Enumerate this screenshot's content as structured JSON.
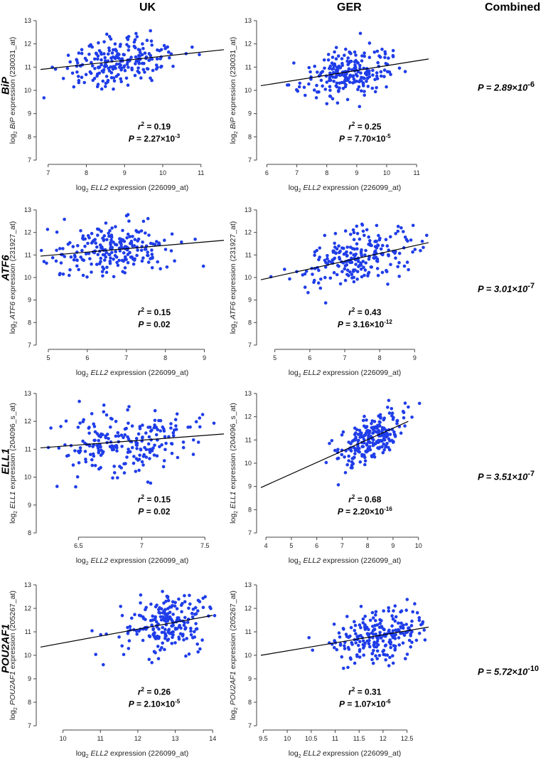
{
  "column_headers": [
    "UK",
    "GER",
    "Combined"
  ],
  "rows": [
    {
      "gene": "BiP",
      "combined_p": "P = 2.89×10",
      "combined_exp": "-6"
    },
    {
      "gene": "ATF6",
      "combined_p": "P = 3.01×10",
      "combined_exp": "-7"
    },
    {
      "gene": "ELL1",
      "combined_p": "P = 3.51×10",
      "combined_exp": "-7"
    },
    {
      "gene": "POU2AF1",
      "combined_p": "P = 5.72×10",
      "combined_exp": "-10"
    }
  ],
  "chart_data": [
    {
      "type": "scatter",
      "row": 0,
      "col": 0,
      "cohort": "UK",
      "gene": "BiP",
      "ylabel_gene": "BiP",
      "ylabel_probe": "(230031_at)",
      "xlabel_gene": "ELL2",
      "xlabel_probe": "(226099_at)",
      "xlim": [
        6.8,
        11.6
      ],
      "ylim": [
        7,
        13
      ],
      "xticks": [
        7,
        8,
        9,
        10,
        11
      ],
      "yticks": [
        7,
        8,
        9,
        10,
        11,
        12,
        13
      ],
      "fit": {
        "x": [
          6.8,
          11.6
        ],
        "y": [
          10.9,
          11.75
        ]
      },
      "r2": "0.19",
      "p": "2.27×10",
      "p_exp": "-3",
      "n": 230,
      "center": [
        8.9,
        11.3
      ],
      "spread": [
        0.8,
        0.6
      ],
      "seed": 11
    },
    {
      "type": "scatter",
      "row": 0,
      "col": 1,
      "cohort": "GER",
      "gene": "BiP",
      "ylabel_gene": "BiP",
      "ylabel_probe": "(230031_at)",
      "xlabel_gene": "ELL2",
      "xlabel_probe": "(226099_at)",
      "xlim": [
        5.8,
        11.4
      ],
      "ylim": [
        7,
        13
      ],
      "xticks": [
        6,
        7,
        8,
        9,
        10,
        11
      ],
      "yticks": [
        7,
        8,
        9,
        10,
        11,
        12,
        13
      ],
      "fit": {
        "x": [
          5.8,
          11.4
        ],
        "y": [
          10.2,
          11.35
        ]
      },
      "r2": "0.25",
      "p": "7.70×10",
      "p_exp": "-5",
      "n": 230,
      "center": [
        8.7,
        10.9
      ],
      "spread": [
        0.8,
        0.6
      ],
      "seed": 23
    },
    {
      "type": "scatter",
      "row": 1,
      "col": 0,
      "cohort": "UK",
      "gene": "ATF6",
      "ylabel_gene": "ATF6",
      "ylabel_probe": "(231927_at)",
      "xlabel_gene": "ELL2",
      "xlabel_probe": "(226099_at)",
      "xlim": [
        4.8,
        9.5
      ],
      "ylim": [
        7,
        13
      ],
      "xticks": [
        5,
        6,
        7,
        8,
        9
      ],
      "yticks": [
        7,
        8,
        9,
        10,
        11,
        12,
        13
      ],
      "fit": {
        "x": [
          4.8,
          9.5
        ],
        "y": [
          10.95,
          11.65
        ]
      },
      "r2": "0.15",
      "p": "0.02",
      "p_exp": "",
      "n": 230,
      "center": [
        6.6,
        11.2
      ],
      "spread": [
        0.8,
        0.6
      ],
      "seed": 37
    },
    {
      "type": "scatter",
      "row": 1,
      "col": 1,
      "cohort": "GER",
      "gene": "ATF6",
      "ylabel_gene": "ATF6",
      "ylabel_probe": "(231927_at)",
      "xlabel_gene": "ELL2",
      "xlabel_probe": "(226099_at)",
      "xlim": [
        4.6,
        9.4
      ],
      "ylim": [
        7,
        13
      ],
      "xticks": [
        5,
        6,
        7,
        8,
        9
      ],
      "yticks": [
        7,
        8,
        9,
        10,
        11,
        12,
        13
      ],
      "fit": {
        "x": [
          4.6,
          9.4
        ],
        "y": [
          9.9,
          11.55
        ]
      },
      "r2": "0.43",
      "p": "3.16×10",
      "p_exp": "-12",
      "n": 230,
      "center": [
        7.4,
        10.8
      ],
      "spread": [
        0.8,
        0.6
      ],
      "seed": 41
    },
    {
      "type": "scatter",
      "row": 2,
      "col": 0,
      "cohort": "UK",
      "gene": "ELL1",
      "ylabel_gene": "ELL1",
      "ylabel_probe": "(204096_s_at)",
      "xlabel_gene": "ELL2",
      "xlabel_probe": "(226099_at)",
      "xlim": [
        6.2,
        7.65
      ],
      "ylim": [
        8,
        13
      ],
      "xticks": [
        6.5,
        7.0,
        7.5
      ],
      "yticks": [
        8,
        9,
        10,
        11,
        12,
        13
      ],
      "fit": {
        "x": [
          6.2,
          7.65
        ],
        "y": [
          11.05,
          11.55
        ]
      },
      "r2": "0.15",
      "p": "0.02",
      "p_exp": "",
      "n": 230,
      "center": [
        6.9,
        11.2
      ],
      "spread": [
        0.3,
        0.6
      ],
      "seed": 53
    },
    {
      "type": "scatter",
      "row": 2,
      "col": 1,
      "cohort": "GER",
      "gene": "ELL1",
      "ylabel_gene": "ELL1",
      "ylabel_probe": "(204096_s_at)",
      "xlabel_gene": "ELL2",
      "xlabel_probe": "(226099_at)",
      "xlim": [
        3.8,
        10.4
      ],
      "ylim": [
        7,
        13
      ],
      "xticks": [
        4,
        5,
        6,
        7,
        8,
        9,
        10
      ],
      "yticks": [
        7,
        8,
        9,
        10,
        11,
        12,
        13
      ],
      "fit": {
        "x": [
          3.8,
          9.6
        ],
        "y": [
          8.95,
          11.8
        ]
      },
      "r2": "0.68",
      "p": "2.20×10",
      "p_exp": "-16",
      "n": 230,
      "center": [
        8.2,
        11.0
      ],
      "spread": [
        0.7,
        0.5
      ],
      "seed": 67
    },
    {
      "type": "scatter",
      "row": 3,
      "col": 0,
      "cohort": "UK",
      "gene": "POU2AF1",
      "ylabel_gene": "POU2AF1",
      "ylabel_probe": "(205267_at)",
      "xlabel_gene": "ELL2",
      "xlabel_probe": "(226099_at)",
      "xlim": [
        9.4,
        14.3
      ],
      "ylim": [
        7,
        13
      ],
      "xticks": [
        10,
        11,
        12,
        13,
        14
      ],
      "yticks": [
        7,
        8,
        9,
        10,
        11,
        12,
        13
      ],
      "fit": {
        "x": [
          9.4,
          14.0
        ],
        "y": [
          10.35,
          11.7
        ]
      },
      "r2": "0.26",
      "p": "2.10×10",
      "p_exp": "-5",
      "n": 230,
      "center": [
        12.8,
        11.2
      ],
      "spread": [
        0.6,
        0.7
      ],
      "seed": 79
    },
    {
      "type": "scatter",
      "row": 3,
      "col": 1,
      "cohort": "GER",
      "gene": "POU2AF1",
      "ylabel_gene": "POU2AF1",
      "ylabel_probe": "(205267_at)",
      "xlabel_gene": "ELL2",
      "xlabel_probe": "(226099_at)",
      "xlim": [
        9.45,
        12.95
      ],
      "ylim": [
        7,
        13
      ],
      "xticks": [
        9.5,
        10.0,
        10.5,
        11.0,
        11.5,
        12.0,
        12.5
      ],
      "yticks": [
        7,
        8,
        9,
        10,
        11,
        12,
        13
      ],
      "fit": {
        "x": [
          9.45,
          12.95
        ],
        "y": [
          10.0,
          11.2
        ]
      },
      "r2": "0.31",
      "p": "1.07×10",
      "p_exp": "-6",
      "n": 230,
      "center": [
        11.9,
        10.9
      ],
      "spread": [
        0.5,
        0.6
      ],
      "seed": 97
    }
  ]
}
